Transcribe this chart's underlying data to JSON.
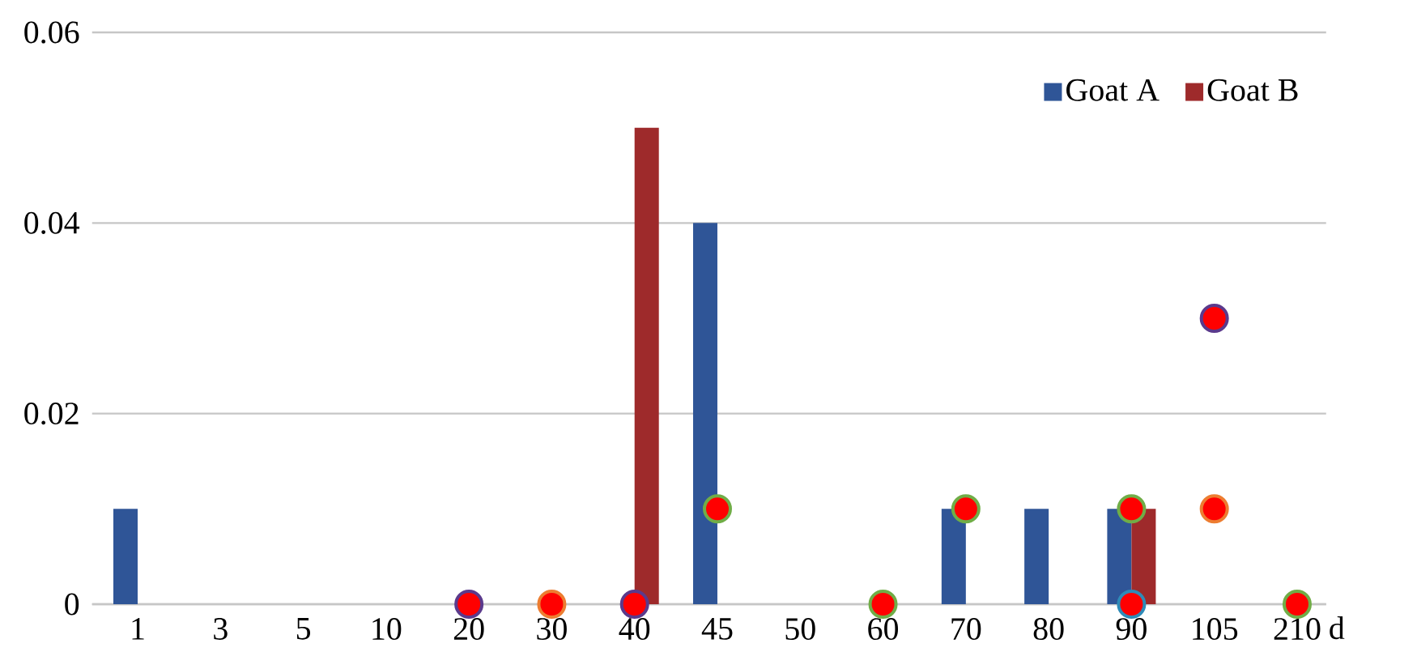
{
  "chart_data": {
    "type": "bar",
    "xlabel": "d",
    "categories": [
      "1",
      "3",
      "5",
      "10",
      "20",
      "30",
      "40",
      "45",
      "50",
      "60",
      "70",
      "80",
      "90",
      "105",
      "210"
    ],
    "series": [
      {
        "name": "Goat A",
        "color": "#2f5597",
        "values": [
          0.01,
          0,
          0,
          0,
          0,
          0,
          0,
          0.04,
          0,
          0,
          0.01,
          0.01,
          0.01,
          0,
          0
        ]
      },
      {
        "name": "Goat B",
        "color": "#9e2a2b",
        "values": [
          0,
          0,
          0,
          0,
          0,
          0,
          0.05,
          0,
          0,
          0,
          0,
          0,
          0.01,
          0,
          0
        ]
      },
      {
        "type": "scatter",
        "color": "#ff0000",
        "x": [
          "20",
          "30",
          "40",
          "45",
          "60",
          "70",
          "90",
          "90",
          "105",
          "105",
          "210"
        ],
        "values": [
          0,
          0,
          0,
          0.01,
          0,
          0.01,
          0.01,
          0,
          0.03,
          0.01,
          0
        ],
        "colors": [
          "#5b3a8c",
          "#ed7d31",
          "#5b3a8c",
          "#70ad47",
          "#70ad47",
          "#70ad47",
          "#70ad47",
          "#2e8bb8",
          "#5b3a8c",
          "#ed7d31",
          "#70ad47"
        ]
      }
    ],
    "ylim": [
      0,
      0.06
    ],
    "yticks": [
      0,
      0.02,
      0.04,
      0.06
    ],
    "grid": "y",
    "legend": "top right",
    "marker": "circle"
  }
}
